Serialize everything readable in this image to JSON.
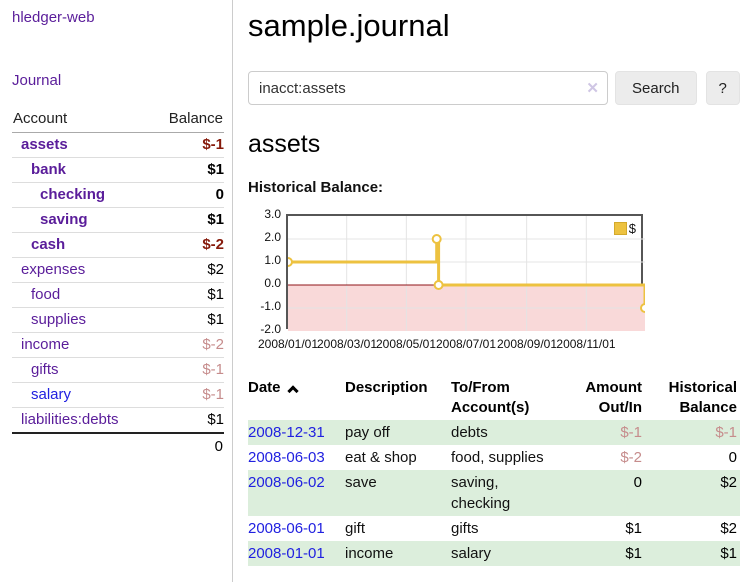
{
  "app": {
    "brand": "hledger-web"
  },
  "sidebar": {
    "journal_link": "Journal",
    "accounts": {
      "header_account": "Account",
      "header_balance": "Balance",
      "rows": [
        {
          "name": "assets",
          "indent": 1,
          "in_account": true,
          "balance": "$-1",
          "balance_style": "neg-strong"
        },
        {
          "name": "bank",
          "indent": 2,
          "in_account": true,
          "balance": "$1",
          "balance_style": "pos-strong"
        },
        {
          "name": "checking",
          "indent": 3,
          "in_account": true,
          "balance": "0",
          "balance_style": "pos-strong"
        },
        {
          "name": "saving",
          "indent": 3,
          "in_account": true,
          "balance": "$1",
          "balance_style": "pos-strong"
        },
        {
          "name": "cash",
          "indent": 2,
          "in_account": true,
          "balance": "$-2",
          "balance_style": "neg-strong"
        },
        {
          "name": "expenses",
          "indent": 1,
          "in_account": false,
          "balance": "$2",
          "balance_style": "pos"
        },
        {
          "name": "food",
          "indent": 2,
          "in_account": false,
          "balance": "$1",
          "balance_style": "pos"
        },
        {
          "name": "supplies",
          "indent": 2,
          "in_account": false,
          "balance": "$1",
          "balance_style": "pos"
        },
        {
          "name": "income",
          "indent": 1,
          "in_account": false,
          "balance": "$-2",
          "balance_style": "neg"
        },
        {
          "name": "gifts",
          "indent": 2,
          "in_account": false,
          "balance": "$-1",
          "balance_style": "neg"
        },
        {
          "name": "salary",
          "indent": 2,
          "in_account": false,
          "balance": "$-1",
          "balance_style": "neg",
          "link_color": "blue"
        },
        {
          "name": "liabilities:debts",
          "indent": 1,
          "in_account": false,
          "balance": "$1",
          "balance_style": "pos"
        }
      ],
      "total": "0"
    }
  },
  "main": {
    "title": "sample.journal",
    "search": {
      "value": "inacct:assets",
      "clear_label": "✕",
      "button": "Search",
      "help_button": "?"
    },
    "account_heading": "assets"
  },
  "chart_data": {
    "type": "line",
    "step": true,
    "title": "Historical Balance:",
    "legend_position": "top-right",
    "grid": true,
    "xrange": [
      "2008-01-01",
      "2008-12-31"
    ],
    "ylim": [
      -2,
      3
    ],
    "yticks": [
      {
        "label": "3.0",
        "value": 3
      },
      {
        "label": "2.0",
        "value": 2
      },
      {
        "label": "1.0",
        "value": 1
      },
      {
        "label": "0.0",
        "value": 0
      },
      {
        "label": "-1.0",
        "value": -1
      },
      {
        "label": "-2.0",
        "value": -2
      }
    ],
    "xticks": [
      {
        "label": "2008/01/01",
        "date": "2008-01-01"
      },
      {
        "label": "2008/03/01",
        "date": "2008-03-01"
      },
      {
        "label": "2008/05/01",
        "date": "2008-05-01"
      },
      {
        "label": "2008/07/01",
        "date": "2008-07-01"
      },
      {
        "label": "2008/09/01",
        "date": "2008-09-01"
      },
      {
        "label": "2008/11/01",
        "date": "2008-11-01"
      }
    ],
    "series": [
      {
        "name": "$",
        "color": "#edc240",
        "points": [
          {
            "date": "2008-01-01",
            "value": 1
          },
          {
            "date": "2008-06-01",
            "value": 2
          },
          {
            "date": "2008-06-03",
            "value": 0
          },
          {
            "date": "2008-12-31",
            "value": -1
          }
        ]
      }
    ],
    "colors": {
      "below_zero_fill": "#f9d9d9",
      "zero_line": "#8f1418",
      "grid_line": "#e4e4e4",
      "border": "#565656"
    }
  },
  "register_table": {
    "headers": {
      "date": "Date",
      "description": "Description",
      "accounts_line1": "To/From",
      "accounts_line2": "Account(s)",
      "amount_line1": "Amount",
      "amount_line2": "Out/In",
      "balance_line1": "Historical",
      "balance_line2": "Balance"
    },
    "rows": [
      {
        "date": "2008-12-31",
        "description": "pay off",
        "accounts": "debts",
        "amount": "$-1",
        "amount_style": "neg",
        "balance": "$-1",
        "balance_style": "neg"
      },
      {
        "date": "2008-06-03",
        "description": "eat & shop",
        "accounts": "food, supplies",
        "amount": "$-2",
        "amount_style": "neg",
        "balance": "0",
        "balance_style": "pos"
      },
      {
        "date": "2008-06-02",
        "description": "save",
        "accounts": "saving, checking",
        "amount": "0",
        "amount_style": "pos",
        "balance": "$2",
        "balance_style": "pos"
      },
      {
        "date": "2008-06-01",
        "description": "gift",
        "accounts": "gifts",
        "amount": "$1",
        "amount_style": "pos",
        "balance": "$2",
        "balance_style": "pos"
      },
      {
        "date": "2008-01-01",
        "description": "income",
        "accounts": "salary",
        "amount": "$1",
        "amount_style": "pos",
        "balance": "$1",
        "balance_style": "pos"
      }
    ]
  }
}
